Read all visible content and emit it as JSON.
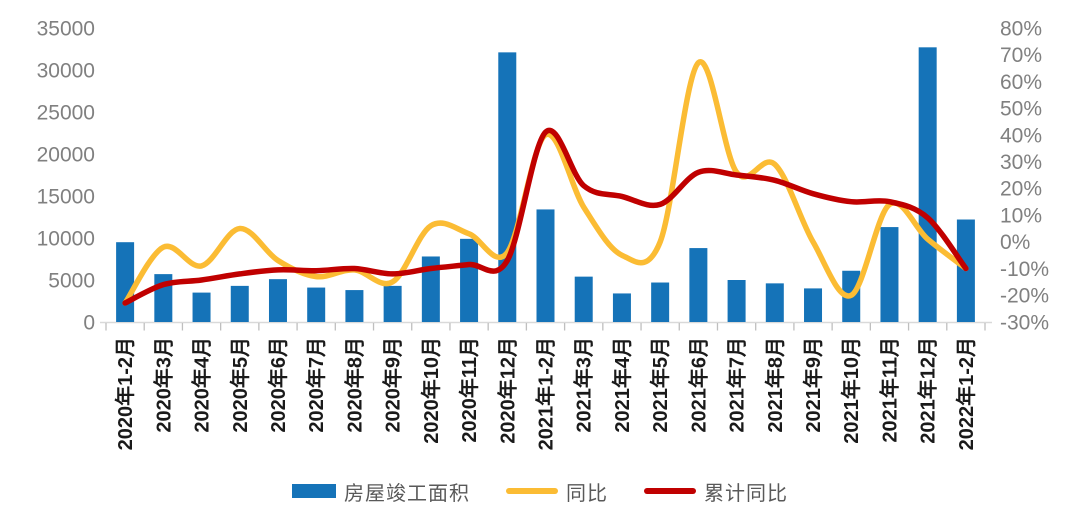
{
  "chart_data": {
    "type": "combo",
    "title": "",
    "categories": [
      "2020年1-2月",
      "2020年3月",
      "2020年4月",
      "2020年5月",
      "2020年6月",
      "2020年7月",
      "2020年8月",
      "2020年9月",
      "2020年10月",
      "2020年11月",
      "2020年12月",
      "2021年1-2月",
      "2021年3月",
      "2021年4月",
      "2021年5月",
      "2021年6月",
      "2021年7月",
      "2021年8月",
      "2021年9月",
      "2021年10月",
      "2021年11月",
      "2021年12月",
      "2022年1-2月"
    ],
    "series": [
      {
        "name": "房屋竣工面积",
        "type": "bar",
        "axis": "left",
        "color": "#1573B8",
        "values": [
          9500,
          5700,
          3500,
          4300,
          5100,
          4100,
          3800,
          4300,
          7800,
          9900,
          32100,
          13400,
          5400,
          3400,
          4700,
          8800,
          5000,
          4600,
          4000,
          6100,
          11300,
          32700,
          12200
        ]
      },
      {
        "name": "同比",
        "type": "line",
        "axis": "right",
        "color": "#FBBC34",
        "values": [
          -22.9,
          -2,
          -9,
          5,
          -7,
          -13,
          -10.5,
          -15,
          6,
          3,
          -4,
          40,
          13,
          -5,
          0,
          67,
          26,
          29,
          0,
          -20,
          14,
          1,
          -10
        ]
      },
      {
        "name": "累计同比",
        "type": "line",
        "axis": "right",
        "color": "#C00000",
        "values": [
          -22.9,
          -16,
          -14.3,
          -12,
          -10.5,
          -10.8,
          -10,
          -12,
          -10,
          -8.5,
          -7,
          41,
          21,
          17,
          14,
          26,
          25,
          23,
          18,
          15,
          15,
          9,
          -10
        ]
      }
    ],
    "left_axis": {
      "min": 0,
      "max": 35000,
      "step": 5000,
      "tick_labels": [
        "35000",
        "30000",
        "25000",
        "20000",
        "15000",
        "10000",
        "5000",
        "0"
      ]
    },
    "right_axis": {
      "min": -30,
      "max": 80,
      "step": 10,
      "tick_labels": [
        "80%",
        "70%",
        "60%",
        "50%",
        "40%",
        "30%",
        "20%",
        "10%",
        "0%",
        "-10%",
        "-20%",
        "-30%"
      ]
    },
    "grid": false,
    "legend_position": "bottom"
  },
  "style": {
    "axis_label_color": "#808080",
    "x_label_color": "#1a1a1a",
    "legend_text_color": "#595959",
    "axis_line_color": "#d9d9d9",
    "tick_color": "#bfbfbf",
    "background": "#ffffff"
  }
}
